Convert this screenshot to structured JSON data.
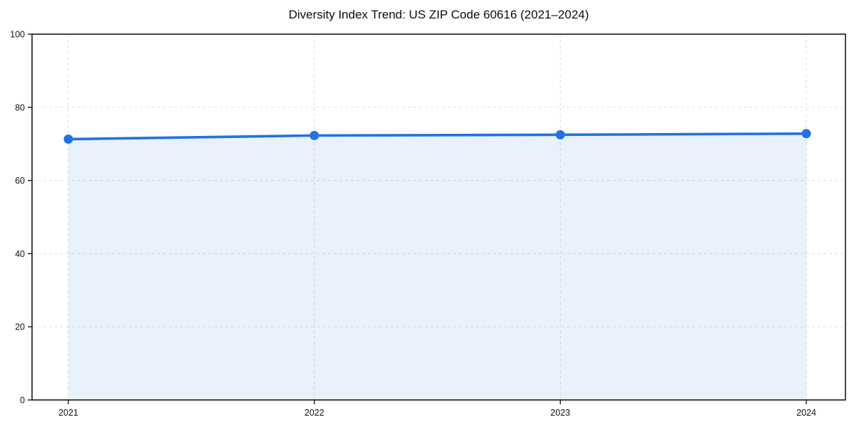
{
  "chart_data": {
    "type": "area",
    "title": "Diversity Index Trend: US ZIP Code 60616 (2021–2024)",
    "categories": [
      "2021",
      "2022",
      "2023",
      "2024"
    ],
    "series": [
      {
        "name": "Diversity Index",
        "values": [
          71.3,
          72.3,
          72.5,
          72.8
        ]
      }
    ],
    "xlabel": "",
    "ylabel": "",
    "ylim": [
      0,
      100
    ],
    "yticks": [
      0,
      20,
      40,
      60,
      80,
      100
    ],
    "grid": true,
    "grid_style": "dashed",
    "legend": "none",
    "colors": {
      "line": "#2372e0",
      "marker": "#2372e0",
      "area_fill": "#e9f0fb",
      "gridline": "#e2e2e2",
      "axis": "#1b1b1b",
      "tick_label": "#111111",
      "background": "#ffffff"
    }
  }
}
